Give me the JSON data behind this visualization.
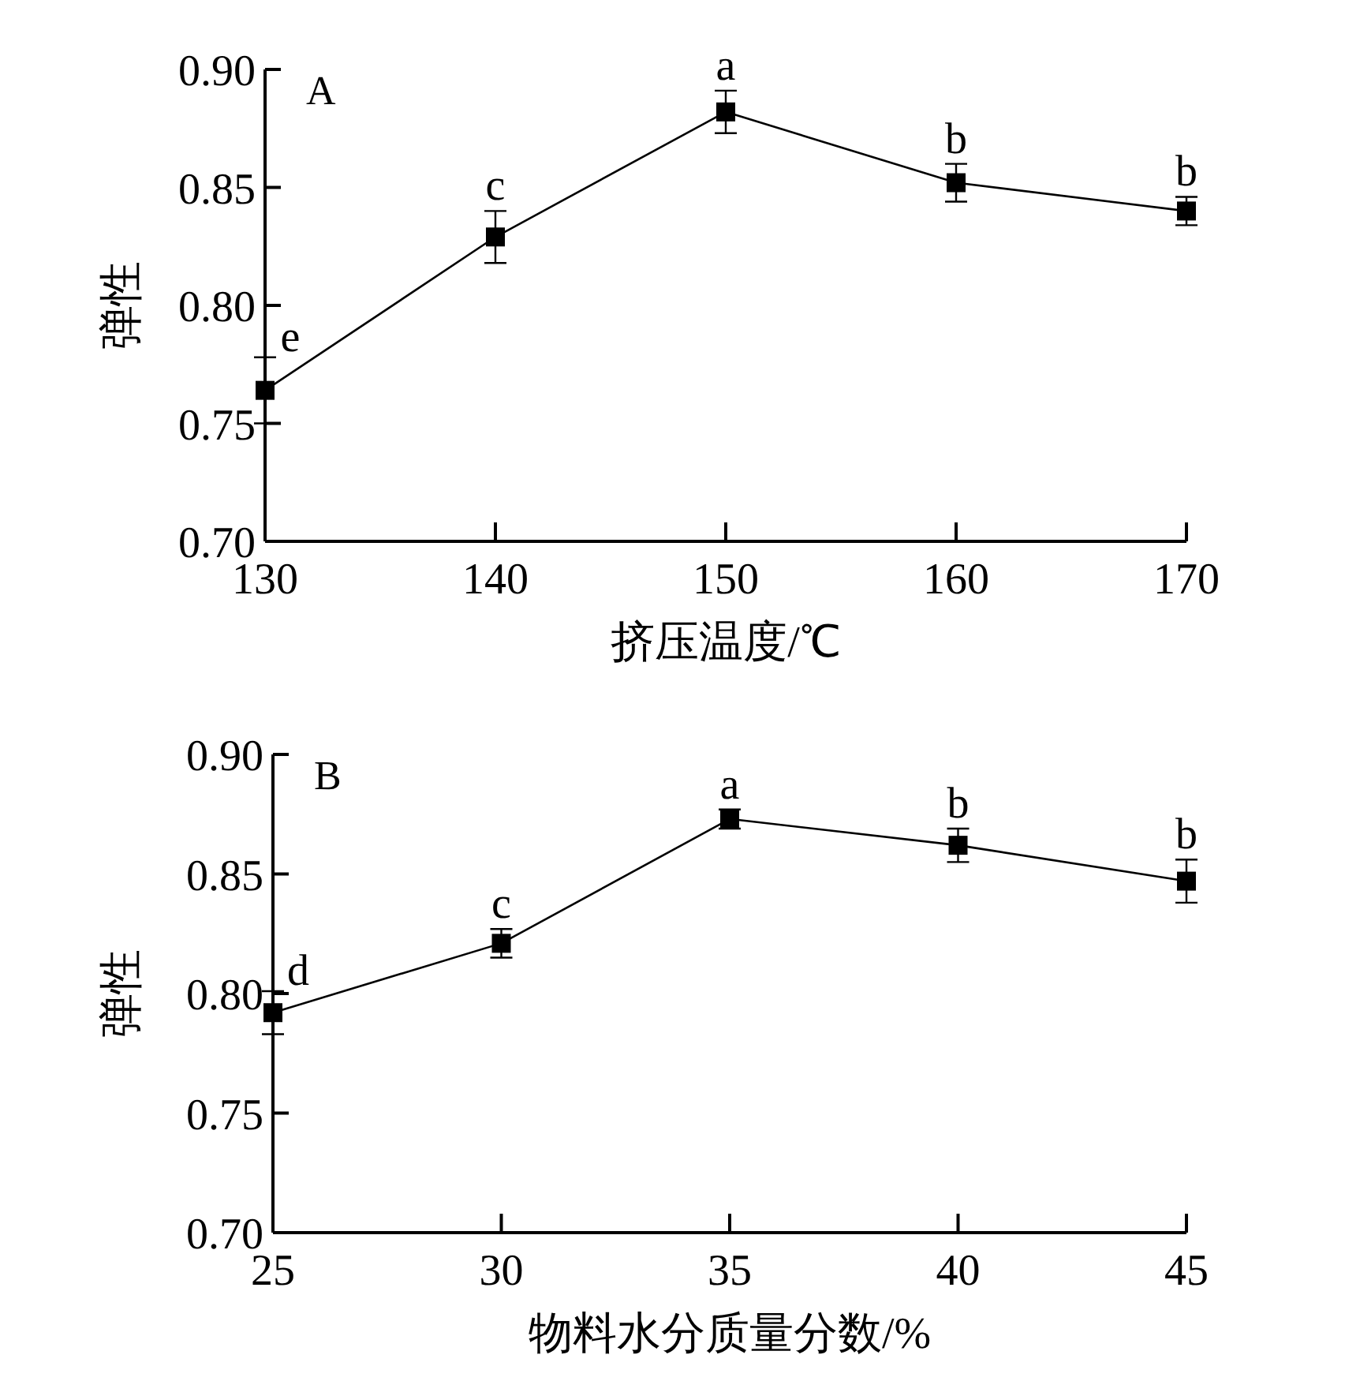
{
  "chart_data": [
    {
      "type": "line",
      "title": "A",
      "xlabel": "挤压温度/℃",
      "ylabel": "弹性",
      "x": [
        130,
        140,
        150,
        160,
        170
      ],
      "xlim": [
        130,
        170
      ],
      "xticks": [
        130,
        140,
        150,
        160,
        170
      ],
      "ylim": [
        0.7,
        0.9
      ],
      "yticks": [
        {
          "value": 0.7,
          "label": "0.70"
        },
        {
          "value": 0.75,
          "label": "0.75"
        },
        {
          "value": 0.8,
          "label": "0.80"
        },
        {
          "value": 0.85,
          "label": "0.85"
        },
        {
          "value": 0.9,
          "label": "0.90"
        }
      ],
      "marker": "square",
      "line_style": "solid",
      "series": [
        {
          "color": "#000000",
          "values": [
            0.764,
            0.829,
            0.882,
            0.852,
            0.84
          ],
          "errors": [
            0.014,
            0.011,
            0.009,
            0.008,
            0.006
          ]
        }
      ],
      "annotations": [
        {
          "text": "e",
          "x": 130,
          "y": 0.778
        },
        {
          "text": "c",
          "x": 140,
          "y": 0.84
        },
        {
          "text": "a",
          "x": 150,
          "y": 0.891
        },
        {
          "text": "b",
          "x": 160,
          "y": 0.86
        },
        {
          "text": "b",
          "x": 170,
          "y": 0.846
        }
      ]
    },
    {
      "type": "line",
      "title": "B",
      "xlabel": "物料水分质量分数/%",
      "ylabel": "弹性",
      "x": [
        25,
        30,
        35,
        40,
        45
      ],
      "xlim": [
        25,
        45
      ],
      "xticks": [
        25,
        30,
        35,
        40,
        45
      ],
      "ylim": [
        0.7,
        0.9
      ],
      "yticks": [
        {
          "value": 0.7,
          "label": "0.70"
        },
        {
          "value": 0.75,
          "label": "0.75"
        },
        {
          "value": 0.8,
          "label": "0.80"
        },
        {
          "value": 0.85,
          "label": "0.85"
        },
        {
          "value": 0.9,
          "label": "0.90"
        }
      ],
      "marker": "square",
      "line_style": "solid",
      "series": [
        {
          "color": "#000000",
          "values": [
            0.792,
            0.821,
            0.873,
            0.862,
            0.847
          ],
          "errors": [
            0.009,
            0.006,
            0.004,
            0.007,
            0.009
          ]
        }
      ],
      "annotations": [
        {
          "text": "d",
          "x": 25,
          "y": 0.801
        },
        {
          "text": "c",
          "x": 30,
          "y": 0.827
        },
        {
          "text": "a",
          "x": 35,
          "y": 0.877
        },
        {
          "text": "b",
          "x": 40,
          "y": 0.869
        },
        {
          "text": "b",
          "x": 45,
          "y": 0.856
        }
      ]
    }
  ]
}
